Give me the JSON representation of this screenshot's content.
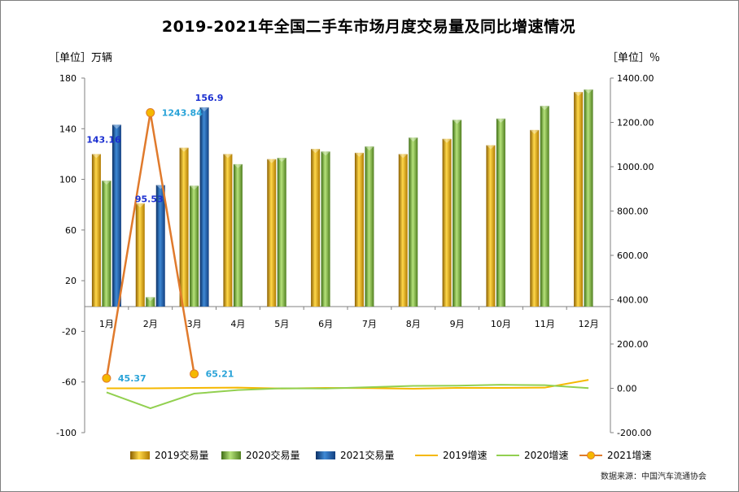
{
  "title": "2019-2021年全国二手车市场月度交易量及同比增速情况",
  "left_unit": "［单位］万辆",
  "right_unit": "［单位］％",
  "source": "数据来源：中国汽车流通协会",
  "chart_data": {
    "type": "bar",
    "categories": [
      "1月",
      "2月",
      "3月",
      "4月",
      "5月",
      "6月",
      "7月",
      "8月",
      "9月",
      "10月",
      "11月",
      "12月"
    ],
    "series": [
      {
        "name": "2019交易量",
        "kind": "bar",
        "axis": "left",
        "values": [
          120,
          81,
          125,
          120,
          116,
          124,
          121,
          120,
          132,
          127,
          139,
          169
        ]
      },
      {
        "name": "2020交易量",
        "kind": "bar",
        "axis": "left",
        "values": [
          99,
          7,
          95,
          112,
          117,
          122,
          126,
          133,
          147,
          148,
          158,
          171
        ]
      },
      {
        "name": "2021交易量",
        "kind": "bar",
        "axis": "left",
        "values": [
          143.16,
          95.53,
          156.9,
          null,
          null,
          null,
          null,
          null,
          null,
          null,
          null,
          null
        ]
      },
      {
        "name": "2019增速",
        "kind": "line",
        "axis": "right",
        "values": [
          0,
          0,
          2,
          3,
          -1,
          2,
          1,
          -2,
          2,
          2,
          3,
          38
        ]
      },
      {
        "name": "2020增速",
        "kind": "line",
        "axis": "right",
        "values": [
          -18,
          -90,
          -24,
          -8,
          0,
          -1,
          5,
          11,
          12,
          16,
          14,
          1
        ]
      },
      {
        "name": "2021增速",
        "kind": "line",
        "axis": "right",
        "values": [
          45.37,
          1243.84,
          65.21,
          null,
          null,
          null,
          null,
          null,
          null,
          null,
          null,
          null
        ]
      }
    ],
    "data_labels": {
      "2021交易量": [
        "143.16",
        "95.53",
        "156.9"
      ],
      "2021增速": [
        "45.37",
        "1243.84",
        "65.21"
      ]
    },
    "left_axis": {
      "ylim": [
        -100,
        180
      ],
      "ticks": [
        "180",
        "140",
        "100",
        "60",
        "20",
        "-20",
        "-60",
        "-100"
      ]
    },
    "right_axis": {
      "ylim": [
        -200,
        1400
      ],
      "ticks": [
        "1400.00",
        "1200.00",
        "1000.00",
        "800.00",
        "600.00",
        "400.00",
        "200.00",
        "0.00",
        "-200.00"
      ]
    },
    "grid": false,
    "legend": "bottom",
    "colors": {
      "bar_2019": "#e8b20a",
      "bar_2020": "#8cc63e",
      "bar_2021": "#1f5fa8",
      "line_2019": "#f5b800",
      "line_2020": "#92d050",
      "line_2021": "#e07a2c",
      "label_2021_volume": "#1b2fd0",
      "label_2021_growth": "#29a3d8"
    }
  }
}
